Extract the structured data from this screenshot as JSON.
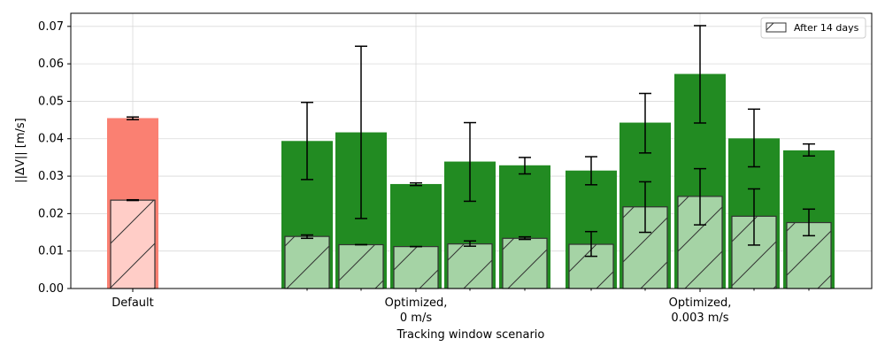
{
  "chart_data": {
    "type": "bar",
    "xlabel": "Tracking window scenario",
    "ylabel": "||ΔV|| [m/s]",
    "ylim": [
      0,
      0.0735
    ],
    "yticks": [
      "0.00",
      "0.01",
      "0.02",
      "0.03",
      "0.04",
      "0.05",
      "0.06",
      "0.07"
    ],
    "ytick_values": [
      0,
      0.01,
      0.02,
      0.03,
      0.04,
      0.05,
      0.06,
      0.07
    ],
    "grid": true,
    "legend": {
      "position": "top-right",
      "entries": [
        {
          "label": "After 14 days",
          "hatch": true
        }
      ]
    },
    "colors": {
      "default_bar": "#fa8072",
      "default_after": "#ffcdc7",
      "optimized_bar": "#228b22",
      "optimized_after": "#a5d3a5",
      "errorbar": "#000000"
    },
    "groups": [
      {
        "label_lines": [
          "Default"
        ],
        "tick_bar": 0
      },
      {
        "label_lines": [
          "Optimized,",
          "0 m/s"
        ],
        "tick_bar": 3
      },
      {
        "label_lines": [
          "Optimized,",
          "0.003 m/s"
        ],
        "tick_bar": 8
      }
    ],
    "bars": [
      {
        "group": "Default",
        "value": 0.0455,
        "err": [
          0.0451,
          0.0458
        ],
        "after": 0.0236,
        "after_err": [
          0.0235,
          0.0237
        ]
      },
      {
        "group": "Optimized, 0 m/s",
        "value": 0.0394,
        "err": [
          0.0291,
          0.0497
        ],
        "after": 0.0139,
        "after_err": [
          0.0134,
          0.0143
        ]
      },
      {
        "group": "Optimized, 0 m/s",
        "value": 0.0417,
        "err": [
          0.0187,
          0.0647
        ],
        "after": 0.0117,
        "after_err": [
          0.0117,
          0.0117
        ]
      },
      {
        "group": "Optimized, 0 m/s",
        "value": 0.0279,
        "err": [
          0.0275,
          0.0282
        ],
        "after": 0.0112,
        "after_err": [
          0.0112,
          0.0112
        ]
      },
      {
        "group": "Optimized, 0 m/s",
        "value": 0.0339,
        "err": [
          0.0233,
          0.0443
        ],
        "after": 0.0119,
        "after_err": [
          0.0113,
          0.0127
        ]
      },
      {
        "group": "Optimized, 0 m/s",
        "value": 0.0329,
        "err": [
          0.0306,
          0.035
        ],
        "after": 0.0134,
        "after_err": [
          0.0131,
          0.0138
        ]
      },
      {
        "group": "Optimized, 0.003 m/s",
        "value": 0.0315,
        "err": [
          0.0277,
          0.0352
        ],
        "after": 0.0118,
        "after_err": [
          0.0086,
          0.0152
        ]
      },
      {
        "group": "Optimized, 0.003 m/s",
        "value": 0.0443,
        "err": [
          0.0362,
          0.0521
        ],
        "after": 0.0218,
        "after_err": [
          0.015,
          0.0285
        ]
      },
      {
        "group": "Optimized, 0.003 m/s",
        "value": 0.0573,
        "err": [
          0.0442,
          0.0702
        ],
        "after": 0.0246,
        "after_err": [
          0.017,
          0.032
        ]
      },
      {
        "group": "Optimized, 0.003 m/s",
        "value": 0.0401,
        "err": [
          0.0325,
          0.0479
        ],
        "after": 0.0193,
        "after_err": [
          0.0116,
          0.0266
        ]
      },
      {
        "group": "Optimized, 0.003 m/s",
        "value": 0.0369,
        "err": [
          0.0354,
          0.0386
        ],
        "after": 0.0176,
        "after_err": [
          0.0141,
          0.0212
        ]
      }
    ]
  }
}
